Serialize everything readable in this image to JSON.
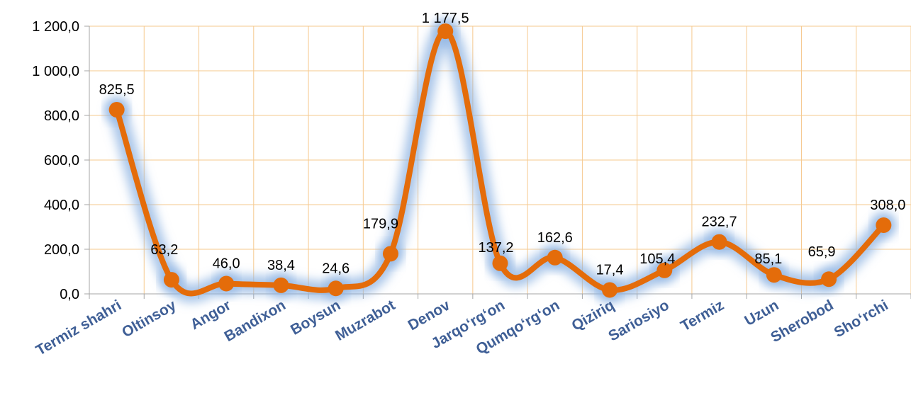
{
  "chart_data": {
    "type": "line",
    "title": "",
    "xlabel": "",
    "ylabel": "",
    "categories": [
      "Termiz shahri",
      "Oltinsoy",
      "Angor",
      "Bandixon",
      "Boysun",
      "Muzrabot",
      "Denov",
      "Jarqo‘rg‘on",
      "Qumqo‘rg‘on",
      "Qiziriq",
      "Sariosiyo",
      "Termiz",
      "Uzun",
      "Sherobod",
      "Sho‘rchi"
    ],
    "series": [
      {
        "values": [
          825.5,
          63.2,
          46.0,
          38.4,
          24.6,
          179.9,
          1177.5,
          137.2,
          162.6,
          17.4,
          105.4,
          232.7,
          85.1,
          65.9,
          308.0
        ],
        "labels": [
          "825,5",
          "63,2",
          "46,0",
          "38,4",
          "24,6",
          "179,9",
          "1 177,5",
          "137,2",
          "162,6",
          "17,4",
          "105,4",
          "232,7",
          "85,1",
          "65,9",
          "308,0"
        ]
      }
    ],
    "ylim": [
      0,
      1200
    ],
    "yticks": [
      0,
      200,
      400,
      600,
      800,
      1000,
      1200
    ],
    "ytick_labels": [
      "0,0",
      "200,0",
      "400,0",
      "600,0",
      "800,0",
      "1 000,0",
      "1 200,0"
    ],
    "grid": true,
    "smooth": true,
    "colors": {
      "line": "#e46c0a",
      "glow": "#8db3e2",
      "gridline": "#f6c98e",
      "axis": "#a6a6a6",
      "category_text": "#3f5f96"
    }
  }
}
